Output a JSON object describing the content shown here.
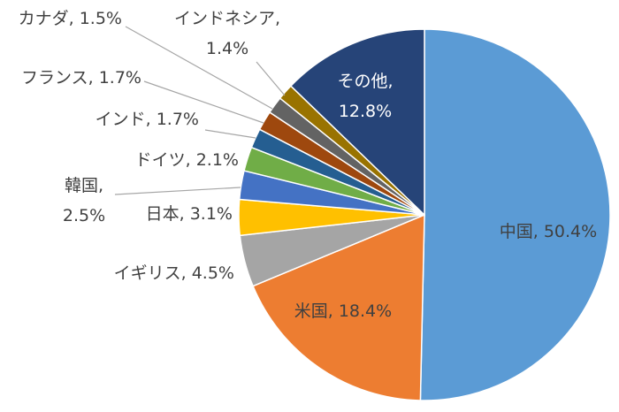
{
  "chart_data": {
    "type": "pie",
    "title": "",
    "slices": [
      {
        "label": "中国",
        "value": 50.4,
        "display": "50.4%",
        "color": "#5b9bd5"
      },
      {
        "label": "米国",
        "value": 18.4,
        "display": "18.4%",
        "color": "#ed7d31"
      },
      {
        "label": "イギリス",
        "value": 4.5,
        "display": "4.5%",
        "color": "#a5a5a5"
      },
      {
        "label": "日本",
        "value": 3.1,
        "display": "3.1%",
        "color": "#ffc000"
      },
      {
        "label": "韓国",
        "value": 2.5,
        "display": "2.5%",
        "color": "#4472c4"
      },
      {
        "label": "ドイツ",
        "value": 2.1,
        "display": "2.1%",
        "color": "#70ad47"
      },
      {
        "label": "インド",
        "value": 1.7,
        "display": "1.7%",
        "color": "#255e91"
      },
      {
        "label": "フランス",
        "value": 1.7,
        "display": "1.7%",
        "color": "#9e480e"
      },
      {
        "label": "カナダ",
        "value": 1.5,
        "display": "1.5%",
        "color": "#636363"
      },
      {
        "label": "インドネシア",
        "value": 1.4,
        "display": "1.4%",
        "color": "#997300"
      },
      {
        "label": "その他",
        "value": 12.8,
        "display": "12.8%",
        "color": "#264478"
      }
    ]
  }
}
